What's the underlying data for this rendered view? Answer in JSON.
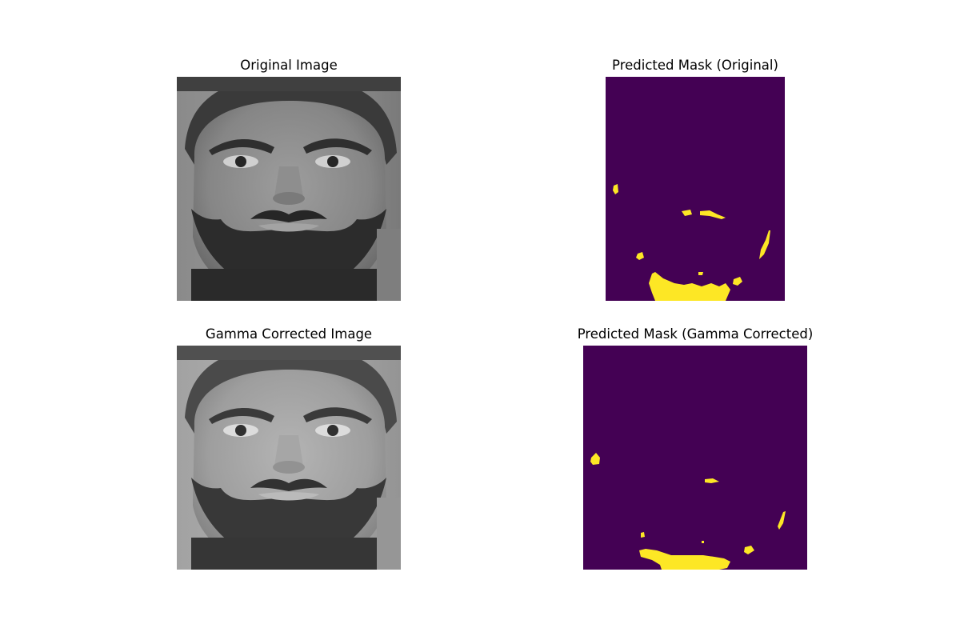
{
  "panels": {
    "original_image": {
      "title": "Original Image"
    },
    "mask_original": {
      "title": "Predicted Mask (Original)"
    },
    "gamma_image": {
      "title": "Gamma Corrected Image"
    },
    "mask_gamma": {
      "title": "Predicted Mask (Gamma Corrected)"
    }
  },
  "colors": {
    "figure_background": "#ffffff",
    "mask_background": "#440154",
    "mask_foreground": "#fde725"
  }
}
